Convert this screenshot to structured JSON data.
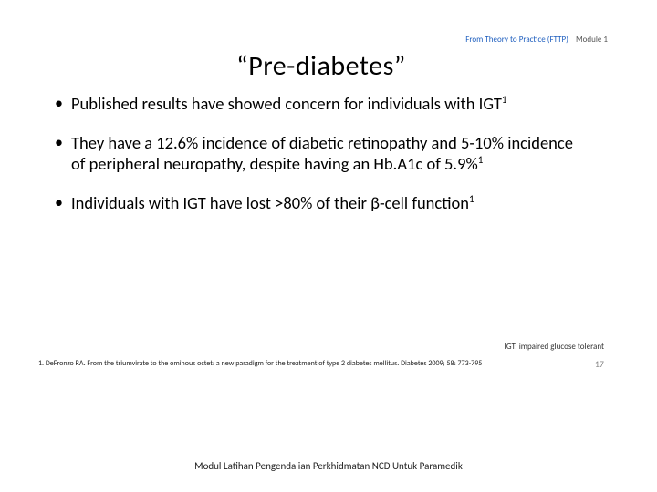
{
  "header": {
    "program": "From Theory to Practice (FTTP)",
    "module": "Module 1"
  },
  "title": "“Pre-diabetes”",
  "bullets": [
    "Published results have showed concern for individuals with IGT",
    "They have a 12.6% incidence of diabetic retinopathy and 5-10% incidence of peripheral neuropathy, despite having an Hb.A1c of 5.9%",
    "Individuals with IGT have lost >80% of their β-cell function"
  ],
  "sup": "1",
  "abbrev": "IGT: impaired glucose tolerant",
  "reference": "1. DeFronzo RA. From the triumvirate to the ominous octet: a new paradigm for the treatment of type 2 diabetes mellitus. Diabetes 2009; 58: 773-795",
  "page_number": "17",
  "footer": "Modul Latihan Pengendalian Perkhidmatan NCD Untuk Paramedik"
}
